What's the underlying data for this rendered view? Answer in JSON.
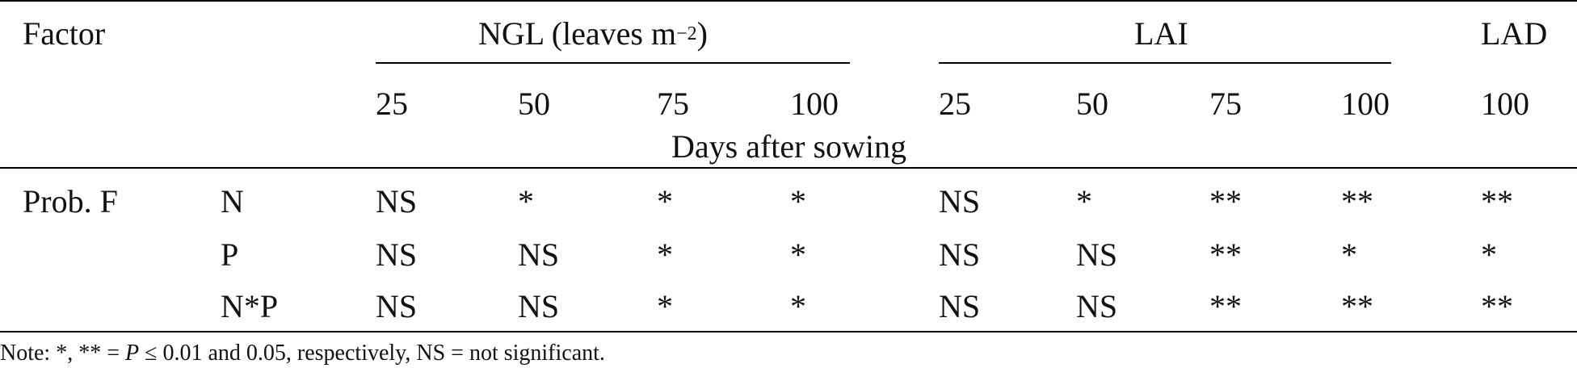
{
  "header": {
    "factor_label": "Factor",
    "groups": [
      {
        "label": "NGL (leaves m",
        "superscript": "−2",
        "suffix": ")"
      },
      {
        "label": "LAI"
      },
      {
        "label": "LAD"
      }
    ],
    "days": [
      "25",
      "50",
      "75",
      "100",
      "25",
      "50",
      "75",
      "100",
      "100"
    ],
    "days_caption": "Days after sowing"
  },
  "rows": [
    {
      "label": "Prob. F",
      "factor": "N",
      "values": [
        "NS",
        "*",
        "*",
        "*",
        "NS",
        "*",
        "**",
        "**",
        "**"
      ]
    },
    {
      "label": "",
      "factor": "P",
      "values": [
        "NS",
        "NS",
        "*",
        "*",
        "NS",
        "NS",
        "**",
        "*",
        "*"
      ]
    },
    {
      "label": "",
      "factor": "N*P",
      "values": [
        "NS",
        "NS",
        "*",
        "*",
        "NS",
        "NS",
        "**",
        "**",
        "**"
      ]
    }
  ],
  "note": {
    "prefix": "Note: *, ** = ",
    "italic": "P",
    "suffix": " ≤ 0.01 and 0.05, respectively, NS = not significant."
  }
}
